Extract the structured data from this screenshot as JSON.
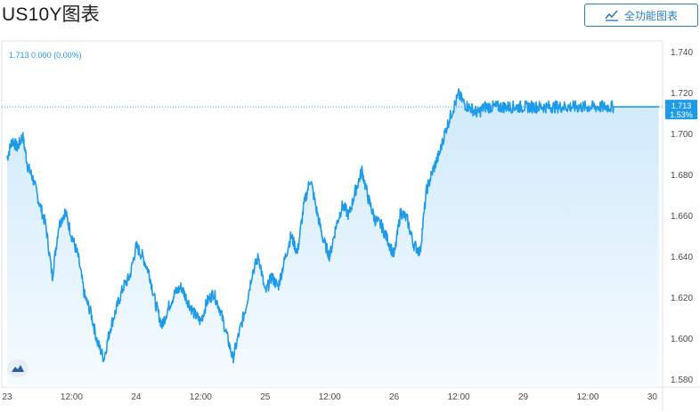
{
  "header": {
    "title": "US10Y图表",
    "full_chart_button": "全功能图表",
    "full_chart_icon": "chart-line-icon"
  },
  "legend": {
    "last": "1.713",
    "change": "0.000",
    "change_pct": "(0.00%)"
  },
  "price_label": {
    "value": "1.713",
    "pct": "1.53%"
  },
  "colors": {
    "line": "#1e9be8",
    "fill_top": "#cfe9fb",
    "fill_bottom": "#f6fbff",
    "axis_text": "#4a4a4a",
    "label_bg": "#1e9be8",
    "border": "#e0e3eb"
  },
  "chart_data": {
    "type": "area",
    "title": "US10Y",
    "xlabel": "",
    "ylabel": "",
    "ylim": [
      1.58,
      1.74
    ],
    "y_ticks": [
      "1.740",
      "1.720",
      "1.700",
      "1.680",
      "1.660",
      "1.640",
      "1.620",
      "1.600",
      "1.580"
    ],
    "x_ticks": [
      "23",
      "12:00",
      "24",
      "12:00",
      "25",
      "12:00",
      "26",
      "12:00",
      "29",
      "12:00",
      "30"
    ],
    "x_tick_pos": [
      0,
      0.5,
      1,
      1.5,
      2,
      2.5,
      3,
      3.5,
      4,
      4.5,
      5
    ],
    "x_range": [
      0,
      5.08
    ],
    "last_value": 1.713,
    "series": [
      {
        "x": [
          0,
          0.04,
          0.08,
          0.12,
          0.16,
          0.2,
          0.25,
          0.3,
          0.35,
          0.4,
          0.45,
          0.5,
          0.55,
          0.6,
          0.65,
          0.7,
          0.75,
          0.8,
          0.85,
          0.9,
          0.95,
          1,
          1.05,
          1.1,
          1.15,
          1.2,
          1.25,
          1.3,
          1.35,
          1.4,
          1.45,
          1.5,
          1.55,
          1.6,
          1.65,
          1.7,
          1.75,
          1.8,
          1.85,
          1.9,
          1.95,
          2,
          2.05,
          2.1,
          2.15,
          2.2,
          2.25,
          2.3,
          2.35,
          2.4,
          2.45,
          2.5,
          2.55,
          2.6,
          2.65,
          2.7,
          2.75,
          2.8,
          2.85,
          2.9,
          2.95,
          3,
          3.05,
          3.1,
          3.15,
          3.2,
          3.25,
          3.3,
          3.35,
          3.4,
          3.45,
          3.5,
          3.55,
          3.6,
          3.65,
          3.7,
          3.75,
          3.8,
          3.85,
          3.9,
          3.95,
          4,
          4.05,
          4.1,
          4.15,
          4.2,
          4.25,
          4.3,
          4.35,
          4.4,
          4.45,
          4.5,
          4.55,
          4.6,
          4.65,
          4.7,
          4.75,
          4.8,
          4.85,
          4.9,
          4.95,
          5,
          5.05
        ],
        "values": [
          1.688,
          1.697,
          1.693,
          1.699,
          1.684,
          1.678,
          1.666,
          1.655,
          1.63,
          1.655,
          1.662,
          1.65,
          1.64,
          1.621,
          1.612,
          1.598,
          1.59,
          1.605,
          1.615,
          1.625,
          1.63,
          1.645,
          1.64,
          1.632,
          1.617,
          1.606,
          1.615,
          1.622,
          1.625,
          1.618,
          1.612,
          1.608,
          1.618,
          1.622,
          1.614,
          1.602,
          1.59,
          1.603,
          1.615,
          1.632,
          1.64,
          1.622,
          1.63,
          1.625,
          1.638,
          1.65,
          1.642,
          1.665,
          1.678,
          1.662,
          1.648,
          1.64,
          1.655,
          1.665,
          1.66,
          1.672,
          1.682,
          1.668,
          1.658,
          1.655,
          1.648,
          1.64,
          1.662,
          1.658,
          1.646,
          1.642,
          1.672,
          1.682,
          1.69,
          1.702,
          1.711,
          1.719,
          1.714,
          1.712,
          1.71,
          1.713,
          1.713,
          1.713,
          1.713,
          1.713,
          1.713,
          1.713,
          1.713,
          1.713,
          1.713,
          1.713,
          1.713,
          1.713,
          1.713,
          1.713,
          1.713,
          1.713,
          1.713,
          1.713,
          1.713,
          1.713,
          1.713,
          1.713,
          1.713,
          1.713,
          1.713,
          1.713,
          1.713
        ]
      }
    ]
  }
}
